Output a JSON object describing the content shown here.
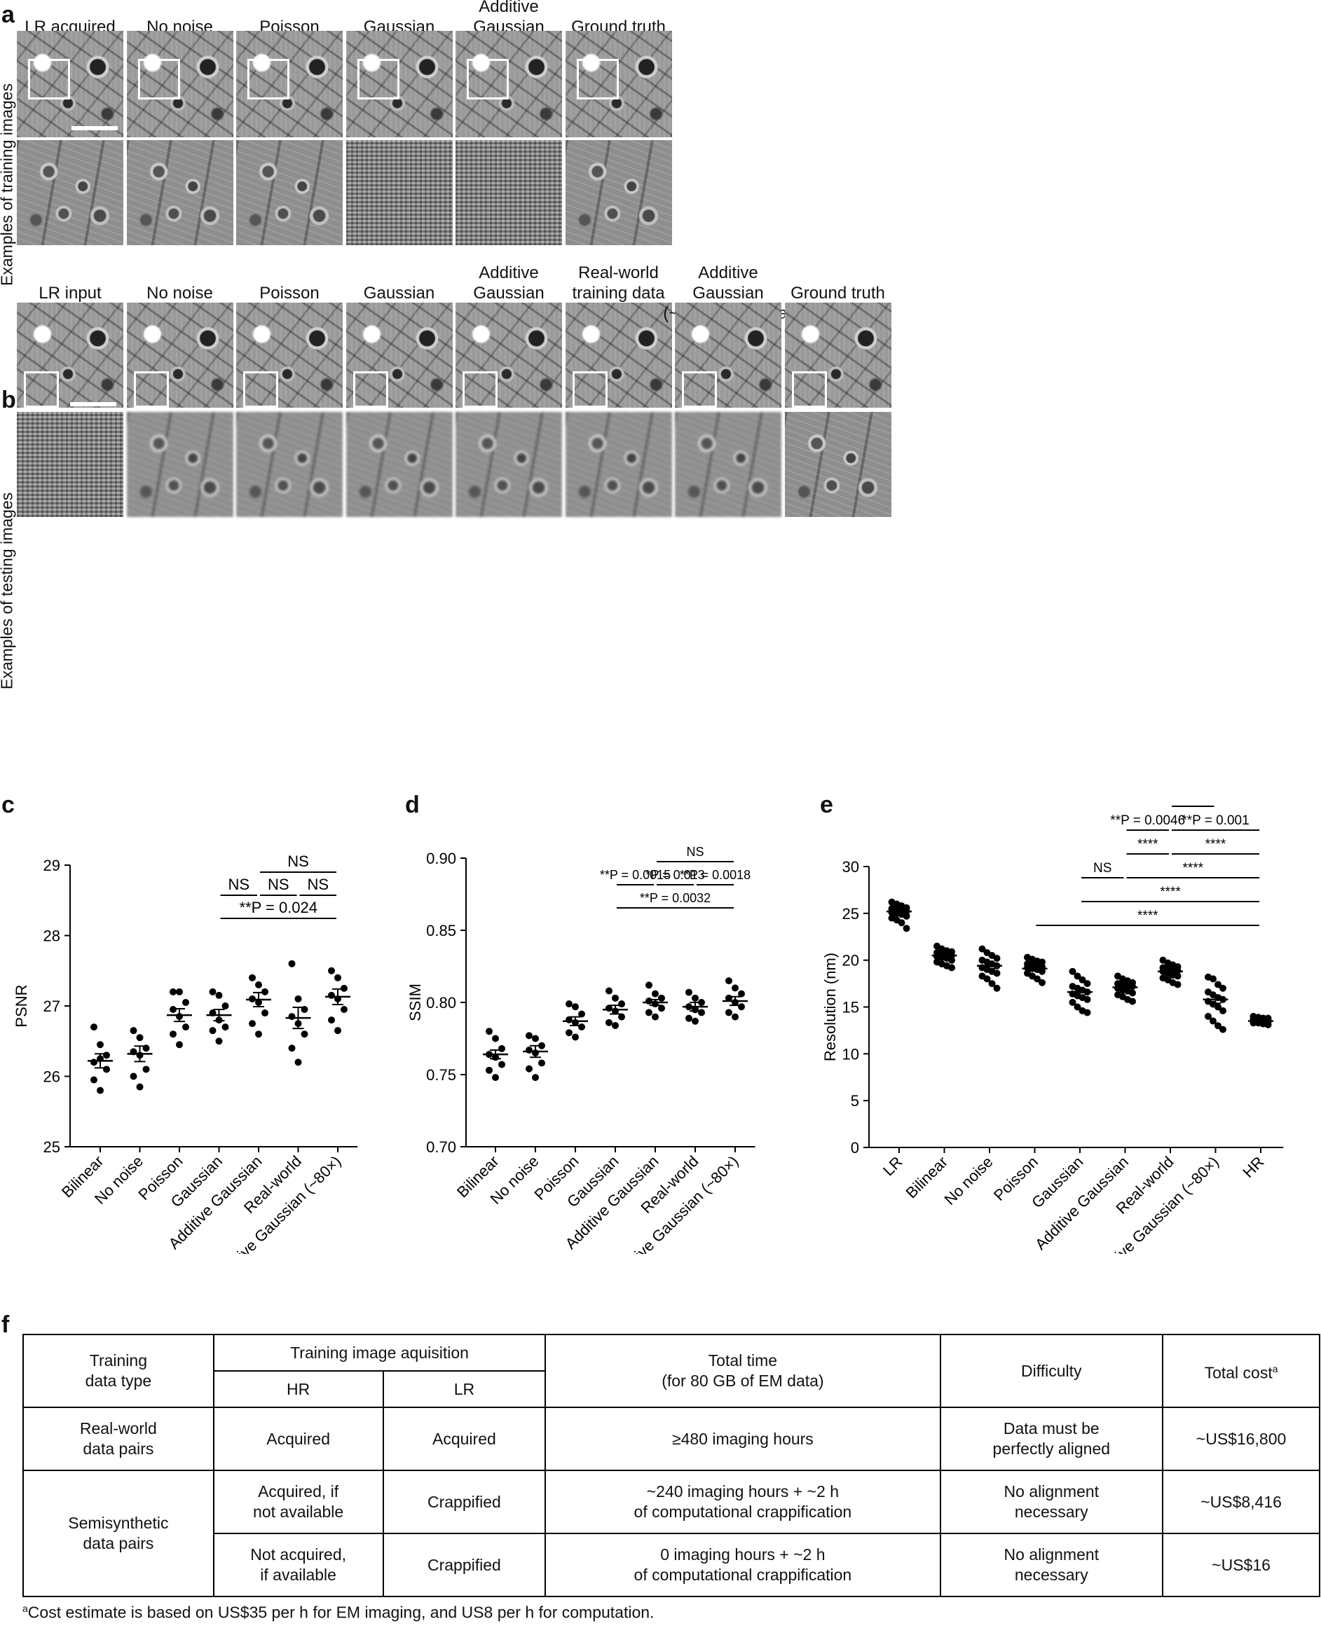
{
  "panel_a": {
    "letter": "a",
    "side_label": "Examples of training images",
    "columns": [
      "LR acquired",
      "No noise",
      "Poisson",
      "Gaussian",
      "Additive\nGaussian",
      "Ground truth"
    ]
  },
  "panel_b": {
    "letter": "b",
    "side_label": "Examples of testing images",
    "columns": [
      "LR input",
      "No noise",
      "Poisson",
      "Gaussian",
      "Additive\nGaussian",
      "Real-world\ntraining data",
      "Additive Gaussian\n(~80× more data)",
      "Ground truth"
    ]
  },
  "chart_data": [
    {
      "panel": "c",
      "type": "scatter",
      "ylabel": "PSNR",
      "ylim": [
        25,
        29
      ],
      "yticks": [
        25,
        26,
        27,
        28,
        29
      ],
      "categories": [
        "Bilinear",
        "No noise",
        "Poisson",
        "Gaussian",
        "Additive Gaussian",
        "Real-world",
        "Additive Gaussian (~80×)"
      ],
      "points": [
        [
          26.7,
          26.45,
          26.3,
          26.2,
          26.25,
          26.1,
          25.95,
          25.8
        ],
        [
          26.65,
          26.55,
          26.4,
          26.35,
          26.3,
          26.1,
          26.0,
          25.85
        ],
        [
          27.2,
          27.2,
          27.05,
          26.95,
          26.85,
          26.7,
          26.6,
          26.45
        ],
        [
          27.2,
          27.15,
          27.0,
          26.9,
          26.8,
          26.7,
          26.65,
          26.5
        ],
        [
          27.4,
          27.3,
          27.2,
          27.1,
          27.05,
          26.9,
          26.75,
          26.6
        ],
        [
          27.6,
          27.1,
          26.95,
          26.85,
          26.75,
          26.6,
          26.4,
          26.2
        ],
        [
          27.5,
          27.4,
          27.25,
          27.15,
          27.1,
          26.95,
          26.8,
          26.65
        ]
      ],
      "means": [
        26.22,
        26.32,
        26.87,
        26.87,
        27.09,
        26.83,
        27.13
      ],
      "sem": [
        0.1,
        0.11,
        0.09,
        0.08,
        0.1,
        0.15,
        0.11
      ],
      "annotations": [
        {
          "from": 3,
          "to": 4,
          "row": 1,
          "text": "NS"
        },
        {
          "from": 4,
          "to": 5,
          "row": 1,
          "text": "NS"
        },
        {
          "from": 5,
          "to": 6,
          "row": 1,
          "text": "NS"
        },
        {
          "from": 4,
          "to": 6,
          "row": 2,
          "text": "NS"
        },
        {
          "from": 3,
          "to": 6,
          "row": 0,
          "text": "**P = 0.024"
        }
      ]
    },
    {
      "panel": "d",
      "type": "scatter",
      "ylabel": "SSIM",
      "ylim": [
        0.7,
        0.9
      ],
      "yticks": [
        0.7,
        0.75,
        0.8,
        0.85,
        0.9
      ],
      "categories": [
        "Bilinear",
        "No noise",
        "Poisson",
        "Gaussian",
        "Additive Gaussian",
        "Real-world",
        "Additive Gaussian (~80×)"
      ],
      "points": [
        [
          0.78,
          0.775,
          0.768,
          0.764,
          0.762,
          0.757,
          0.753,
          0.748
        ],
        [
          0.777,
          0.775,
          0.77,
          0.767,
          0.765,
          0.758,
          0.754,
          0.748
        ],
        [
          0.799,
          0.797,
          0.792,
          0.788,
          0.786,
          0.783,
          0.779,
          0.776
        ],
        [
          0.808,
          0.803,
          0.799,
          0.796,
          0.794,
          0.79,
          0.786,
          0.784
        ],
        [
          0.812,
          0.806,
          0.803,
          0.801,
          0.799,
          0.796,
          0.793,
          0.79
        ],
        [
          0.807,
          0.803,
          0.8,
          0.797,
          0.795,
          0.793,
          0.789,
          0.787
        ],
        [
          0.815,
          0.81,
          0.806,
          0.803,
          0.8,
          0.797,
          0.793,
          0.79
        ]
      ],
      "means": [
        0.764,
        0.766,
        0.787,
        0.795,
        0.8,
        0.797,
        0.801
      ],
      "sem": [
        0.003,
        0.004,
        0.003,
        0.003,
        0.002,
        0.003,
        0.003
      ],
      "annotations": [
        {
          "from": 3,
          "to": 4,
          "row": 1,
          "text": "**P = 0.0015"
        },
        {
          "from": 4,
          "to": 5,
          "row": 1,
          "text": "*P = 0.013"
        },
        {
          "from": 5,
          "to": 6,
          "row": 1,
          "text": "**P = 0.0018"
        },
        {
          "from": 4,
          "to": 6,
          "row": 2,
          "text": "NS"
        },
        {
          "from": 3,
          "to": 6,
          "row": 0,
          "text": "**P = 0.0032"
        }
      ]
    },
    {
      "panel": "e",
      "type": "scatter",
      "ylabel": "Resolution (nm)",
      "ylim": [
        0,
        30
      ],
      "yticks": [
        0,
        5,
        10,
        15,
        20,
        25,
        30
      ],
      "categories": [
        "LR",
        "Bilinear",
        "No noise",
        "Poisson",
        "Gaussian",
        "Additive Gaussian",
        "Real-world",
        "Additive Gaussian (~80×)",
        "HR"
      ],
      "points": [
        [
          26.2,
          26.0,
          25.8,
          25.6,
          25.5,
          25.4,
          25.3,
          25.2,
          25.1,
          25.0,
          24.9,
          24.7,
          24.5,
          24.3,
          24.0,
          23.4
        ],
        [
          21.5,
          21.2,
          21.0,
          20.9,
          20.8,
          20.7,
          20.6,
          20.5,
          20.4,
          20.3,
          20.2,
          20.0,
          19.8,
          19.6,
          19.4,
          19.2
        ],
        [
          21.2,
          20.8,
          20.5,
          20.2,
          20.0,
          19.8,
          19.6,
          19.4,
          19.2,
          19.0,
          18.8,
          18.6,
          18.3,
          18.0,
          17.5,
          17.0
        ],
        [
          20.3,
          20.1,
          19.9,
          19.8,
          19.6,
          19.5,
          19.4,
          19.3,
          19.2,
          19.1,
          19.0,
          18.8,
          18.6,
          18.3,
          18.0,
          17.6
        ],
        [
          18.8,
          18.3,
          17.9,
          17.5,
          17.2,
          17.0,
          16.8,
          16.6,
          16.4,
          16.2,
          16.0,
          15.8,
          15.5,
          15.0,
          14.6,
          14.4
        ],
        [
          18.3,
          18.0,
          17.8,
          17.6,
          17.5,
          17.4,
          17.3,
          17.2,
          17.0,
          16.8,
          16.7,
          16.5,
          16.3,
          16.1,
          15.8,
          15.6
        ],
        [
          20.0,
          19.7,
          19.5,
          19.3,
          19.2,
          19.1,
          19.0,
          18.9,
          18.8,
          18.6,
          18.4,
          18.3,
          18.1,
          17.9,
          17.6,
          17.4
        ],
        [
          18.2,
          18.0,
          17.4,
          17.0,
          16.6,
          16.3,
          16.0,
          15.8,
          15.6,
          15.3,
          15.0,
          14.6,
          14.0,
          13.5,
          13.0,
          12.6
        ],
        [
          14.0,
          13.9,
          13.8,
          13.8,
          13.7,
          13.7,
          13.6,
          13.6,
          13.5,
          13.5,
          13.4,
          13.4,
          13.3,
          13.3,
          13.2,
          13.1
        ]
      ],
      "means": [
        25.2,
        20.5,
        19.4,
        19.1,
        16.6,
        17.1,
        18.8,
        15.8,
        13.5
      ],
      "sem": [
        0.15,
        0.15,
        0.3,
        0.2,
        0.35,
        0.2,
        0.2,
        0.4,
        0.06
      ],
      "annotations": [
        {
          "from": 3,
          "to": 8,
          "row": 0,
          "text": "****"
        },
        {
          "from": 4,
          "to": 8,
          "row": 1,
          "text": "****"
        },
        {
          "from": 4,
          "to": 5,
          "row": 2,
          "text": "NS"
        },
        {
          "from": 5,
          "to": 8,
          "row": 2,
          "text": "****"
        },
        {
          "from": 5,
          "to": 6,
          "row": 3,
          "text": "****"
        },
        {
          "from": 6,
          "to": 8,
          "row": 3,
          "text": "****"
        },
        {
          "from": 5,
          "to": 6,
          "row": 4,
          "text": "**P = 0.0046"
        },
        {
          "from": 6,
          "to": 8,
          "row": 4,
          "text": "**P = 0.001"
        },
        {
          "from": 6,
          "to": 7,
          "row": 5,
          "text": "****"
        }
      ]
    }
  ],
  "chart_letters": {
    "c": "c",
    "d": "d",
    "e": "e"
  },
  "table_f": {
    "letter": "f",
    "h_type": "Training\ndata type",
    "h_acq": "Training image aquisition",
    "h_hr": "HR",
    "h_lr": "LR",
    "h_time": "Total time\n(for 80 GB of EM data)",
    "h_diff": "Difficulty",
    "h_cost": "Total cost",
    "h_cost_sup": "a",
    "r1_type": "Real-world\ndata pairs",
    "r1_hr": "Acquired",
    "r1_lr": "Acquired",
    "r1_time": "≥480 imaging hours",
    "r1_diff": "Data must be\nperfectly aligned",
    "r1_cost": "~US$16,800",
    "r2_type": "Semisynthetic\ndata pairs",
    "r2a_hr": "Acquired, if\nnot available",
    "r2a_lr": "Crappified",
    "r2a_time": "~240 imaging hours + ~2 h\nof computational crappification",
    "r2a_diff": "No alignment\nnecessary",
    "r2a_cost": "~US$8,416",
    "r2b_hr": "Not acquired,\nif available",
    "r2b_lr": "Crappified",
    "r2b_time": "0 imaging hours + ~2 h\nof computational crappification",
    "r2b_diff": "No alignment\nnecessary",
    "r2b_cost": "~US$16",
    "footnote_sup": "a",
    "footnote": "Cost estimate is based on US$35 per h for EM imaging, and US8 per h for computation."
  }
}
